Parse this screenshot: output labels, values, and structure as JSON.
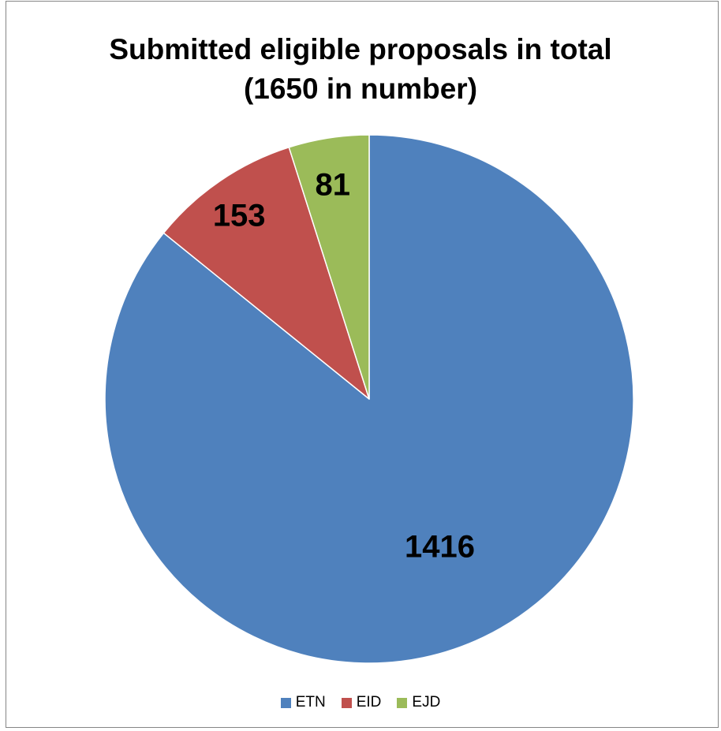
{
  "chart_data": {
    "type": "pie",
    "title": "Submitted eligible proposals in total (1650 in number)",
    "title_lines": [
      "Submitted eligible proposals in total",
      "(1650 in number)"
    ],
    "categories": [
      "ETN",
      "EID",
      "EJD"
    ],
    "values": [
      1416,
      153,
      81
    ],
    "data_labels": [
      "1416",
      "153",
      "81"
    ],
    "colors": [
      "#4F81BD",
      "#C0504D",
      "#9BBB59"
    ],
    "start_angle": "12 o'clock",
    "direction": "clockwise",
    "legend": {
      "position": "bottom",
      "entries": [
        "ETN",
        "EID",
        "EJD"
      ]
    }
  }
}
